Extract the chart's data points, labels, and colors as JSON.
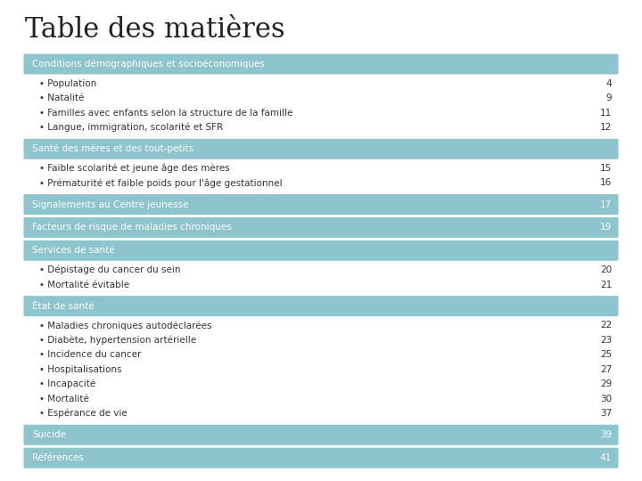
{
  "title": "Table des matières",
  "title_fontsize": 22,
  "title_font": "serif",
  "bg_color": "#ffffff",
  "header_bg": "#8ec4cc",
  "header_text_color": "#ffffff",
  "header_fontsize": 7.5,
  "item_fontsize": 7.5,
  "item_text_color": "#333333",
  "sections": [
    {
      "header": "Conditions démographiques et socioéconomiques",
      "has_page": false,
      "items": [
        {
          "text": "Population",
          "page": "4"
        },
        {
          "text": "Natalité",
          "page": "9"
        },
        {
          "text": "Familles avec enfants selon la structure de la famille",
          "page": "11"
        },
        {
          "text": "Langue, immigration, scolarité et SFR",
          "page": "12"
        }
      ]
    },
    {
      "header": "Santé des mères et des tout-petits",
      "has_page": false,
      "items": [
        {
          "text": "Faible scolarité et jeune âge des mères",
          "page": "15"
        },
        {
          "text": "Prématurité et faible poids pour l'âge gestationnel",
          "page": "16"
        }
      ]
    },
    {
      "header": "Signalements au Centre jeunesse",
      "has_page": true,
      "page": "17",
      "items": []
    },
    {
      "header": "Facteurs de risque de maladies chroniques",
      "has_page": true,
      "page": "19",
      "items": []
    },
    {
      "header": "Services de santé",
      "has_page": false,
      "items": [
        {
          "text": "Dépistage du cancer du sein",
          "page": "20"
        },
        {
          "text": "Mortalité évitable",
          "page": "21"
        }
      ]
    },
    {
      "header": "État de santé",
      "has_page": false,
      "items": [
        {
          "text": "Maladies chroniques autodéclarées",
          "page": "22"
        },
        {
          "text": "Diabète, hypertension artérielle",
          "page": "23"
        },
        {
          "text": "Incidence du cancer",
          "page": "25"
        },
        {
          "text": "Hospitalisations",
          "page": "27"
        },
        {
          "text": "Incapacité",
          "page": "29"
        },
        {
          "text": "Mortalité",
          "page": "30"
        },
        {
          "text": "Espérance de vie",
          "page": "37"
        }
      ]
    },
    {
      "header": "Suicide",
      "has_page": true,
      "page": "39",
      "items": []
    },
    {
      "header": "Références",
      "has_page": true,
      "page": "41",
      "items": []
    }
  ]
}
